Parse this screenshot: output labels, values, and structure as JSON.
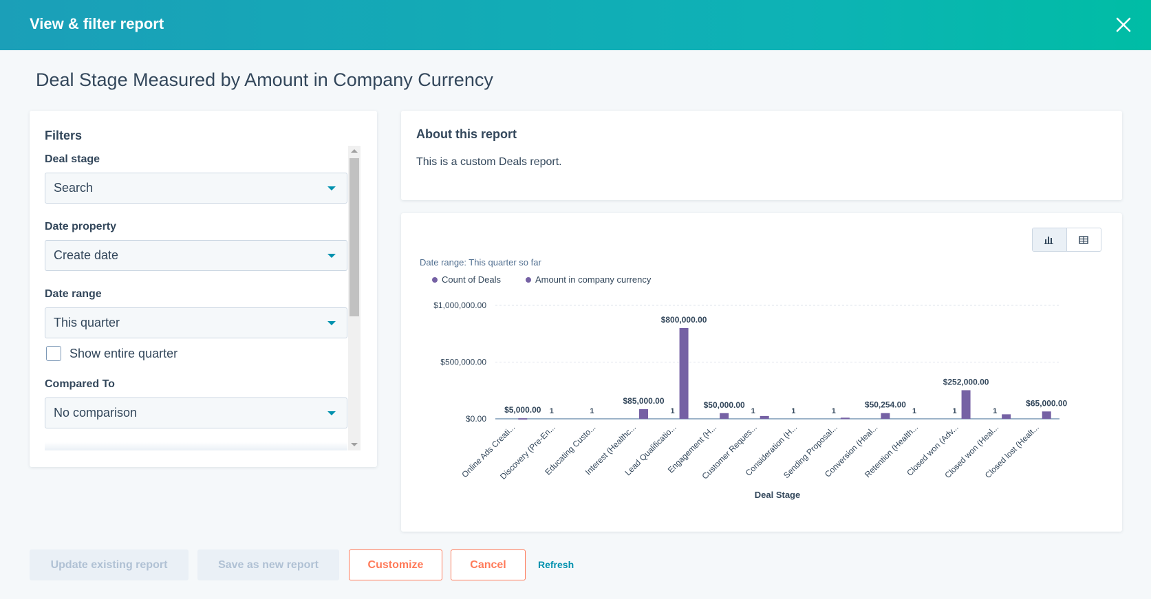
{
  "header": {
    "title": "View & filter report"
  },
  "page": {
    "title": "Deal Stage Measured by Amount in Company Currency"
  },
  "filters": {
    "title": "Filters",
    "deal_stage": {
      "label": "Deal stage",
      "value": "Search"
    },
    "date_property": {
      "label": "Date property",
      "value": "Create date"
    },
    "date_range": {
      "label": "Date range",
      "value": "This quarter"
    },
    "show_entire_quarter": {
      "label": "Show entire quarter",
      "checked": false
    },
    "compared_to": {
      "label": "Compared To",
      "value": "No comparison"
    }
  },
  "about": {
    "title": "About this report",
    "text": "This is a custom Deals report."
  },
  "chart_view": {
    "active": "bar-chart-icon",
    "inactive": "table-icon"
  },
  "chart_data": {
    "type": "bar",
    "subtitle": "Date range: This quarter so far",
    "xlabel": "Deal Stage",
    "ylim": [
      0,
      1000000
    ],
    "yticks": [
      "$0.00",
      "$500,000.00",
      "$1,000,000.00"
    ],
    "ytick_values": [
      0,
      500000,
      1000000
    ],
    "grid": true,
    "legend_placement": "top-left",
    "categories": [
      "Online Ads Creati...",
      "Discovery (Pre-En...",
      "Educating Custo...",
      "Interest (Healthc...",
      "Lead Qualificatio...",
      "Engagement (H...",
      "Customer Reques...",
      "Consideration (H...",
      "Sending Proposal...",
      "Conversion (Heal...",
      "Retention (Health...",
      "Closed won (Adv...",
      "Closed won (Heal...",
      "Closed lost (Healt..."
    ],
    "series": [
      {
        "name": "Count of Deals",
        "color": "#7561a4",
        "values": [
          null,
          1,
          1,
          null,
          1,
          null,
          1,
          1,
          1,
          null,
          1,
          1,
          1,
          null
        ],
        "labels": [
          "",
          "1",
          "1",
          "",
          "1",
          "",
          "1",
          "1",
          "1",
          "",
          "1",
          "1",
          "1",
          ""
        ]
      },
      {
        "name": "Amount in company currency",
        "color": "#7561a4",
        "values": [
          5000,
          null,
          null,
          85000,
          800000,
          50000,
          25000,
          null,
          10000,
          50254,
          null,
          252000,
          40000,
          65000
        ],
        "labels": [
          "$5,000.00",
          "",
          "",
          "$85,000.00",
          "$800,000.00",
          "$50,000.00",
          "",
          "",
          "",
          "$50,254.00",
          "",
          "$252,000.00",
          "",
          "$65,000.00"
        ]
      }
    ]
  },
  "footer": {
    "update_label": "Update existing report",
    "save_new_label": "Save as new report",
    "customize_label": "Customize",
    "cancel_label": "Cancel",
    "refresh_label": "Refresh"
  },
  "colors": {
    "accent": "#00bda5",
    "header_start": "#1b9fb8",
    "action": "#ff7a59",
    "link": "#0091ae",
    "bar": "#7561a4"
  }
}
